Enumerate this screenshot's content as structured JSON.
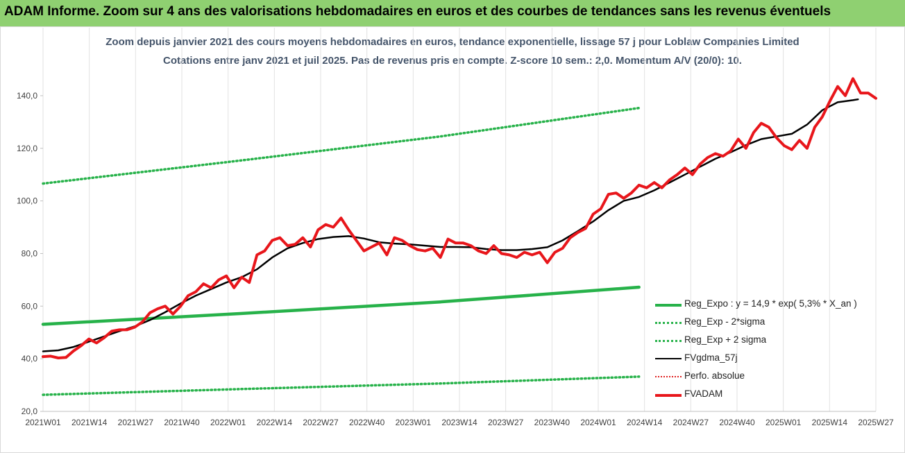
{
  "header": {
    "banner": "ADAM Informe. Zoom sur 4 ans des valorisations hebdomadaires en euros et des courbes de tendances sans les revenus éventuels"
  },
  "chart_data": {
    "type": "line",
    "title": "Zoom depuis janvier 2021 des cours moyens hebdomadaires en euros, tendance exponentielle, lissage 57 j pour Loblaw Companies Limited",
    "subtitle": "Cotations entre janv 2021 et juil 2025. Pas de revenus pris en compte. Z-score 10 sem.: 2,0. Momentum A/V (20/0): 10.",
    "xlabel": "",
    "ylabel": "",
    "ylim": [
      20,
      150
    ],
    "yticks": [
      "20,0",
      "40,0",
      "60,0",
      "80,0",
      "100,0",
      "120,0",
      "140,0"
    ],
    "ytick_values": [
      20,
      40,
      60,
      80,
      100,
      120,
      140
    ],
    "xticks": [
      "2021W01",
      "2021W14",
      "2021W27",
      "2021W40",
      "2022W01",
      "2022W14",
      "2022W27",
      "2022W40",
      "2023W01",
      "2023W14",
      "2023W27",
      "2023W40",
      "2024W01",
      "2024W14",
      "2024W27",
      "2024W40",
      "2025W01",
      "2025W14",
      "2025W27"
    ],
    "x_week_range": [
      0,
      234
    ],
    "grid": "vertical",
    "legend_position": "bottom-right",
    "colors": {
      "reg_expo": "#27b24a",
      "sigma_bands": "#27b24a",
      "smoothed": "#000000",
      "perfo": "#e02020",
      "fvadam": "#e8161b"
    },
    "series": [
      {
        "name": "Reg_Expo : y = 14,9 * exp( 5,3% *  X_an )",
        "style": "solid-thick",
        "points": [
          [
            0,
            53.1
          ],
          [
            78,
            57.2
          ],
          [
            156,
            61.6
          ],
          [
            234,
            67.2
          ]
        ]
      },
      {
        "name": "Reg_Exp - 2*sigma",
        "style": "dotted",
        "points": [
          [
            0,
            26.3
          ],
          [
            78,
            28.5
          ],
          [
            156,
            30.6
          ],
          [
            234,
            33.2
          ]
        ]
      },
      {
        "name": "Reg_Exp + 2 sigma",
        "style": "dotted",
        "points": [
          [
            0,
            106.6
          ],
          [
            78,
            115.4
          ],
          [
            156,
            124.5
          ],
          [
            234,
            135.3
          ]
        ]
      },
      {
        "name": "FVgdma_57j",
        "style": "solid",
        "points": [
          [
            0,
            42.8
          ],
          [
            6,
            43.2
          ],
          [
            12,
            44.5
          ],
          [
            18,
            46.5
          ],
          [
            24,
            48.5
          ],
          [
            30,
            50.5
          ],
          [
            36,
            52.3
          ],
          [
            42,
            54.7
          ],
          [
            48,
            57.7
          ],
          [
            54,
            61
          ],
          [
            60,
            64
          ],
          [
            66,
            66.5
          ],
          [
            72,
            69
          ],
          [
            78,
            71
          ],
          [
            84,
            74
          ],
          [
            90,
            78.5
          ],
          [
            96,
            82
          ],
          [
            102,
            84
          ],
          [
            108,
            85.5
          ],
          [
            114,
            86.3
          ],
          [
            120,
            86.6
          ],
          [
            126,
            85.7
          ],
          [
            132,
            84.3
          ],
          [
            138,
            83.8
          ],
          [
            144,
            83.5
          ],
          [
            150,
            83
          ],
          [
            156,
            82.5
          ],
          [
            162,
            82.5
          ],
          [
            168,
            82.4
          ],
          [
            174,
            81.7
          ],
          [
            180,
            81.3
          ],
          [
            186,
            81.3
          ],
          [
            192,
            81.7
          ],
          [
            198,
            82.4
          ],
          [
            204,
            85
          ],
          [
            210,
            88.5
          ],
          [
            216,
            92.2
          ],
          [
            222,
            96.5
          ],
          [
            228,
            100
          ],
          [
            234,
            101.5
          ],
          [
            240,
            104
          ],
          [
            246,
            107
          ],
          [
            252,
            110
          ],
          [
            258,
            113
          ],
          [
            264,
            116
          ],
          [
            270,
            118.5
          ],
          [
            276,
            121.2
          ],
          [
            282,
            123.5
          ],
          [
            288,
            124.5
          ],
          [
            294,
            125.5
          ],
          [
            300,
            129
          ],
          [
            306,
            134.5
          ],
          [
            312,
            137.5
          ],
          [
            318,
            138.3
          ],
          [
            320,
            138.6
          ]
        ]
      },
      {
        "name": "Perfo. absolue",
        "style": "dotted-red",
        "points": []
      },
      {
        "name": "FVADAM",
        "style": "solid-thick",
        "points": [
          [
            0,
            40.8
          ],
          [
            3,
            41
          ],
          [
            6,
            40.3
          ],
          [
            9,
            40.5
          ],
          [
            12,
            43
          ],
          [
            15,
            45
          ],
          [
            18,
            47.5
          ],
          [
            21,
            46
          ],
          [
            24,
            48
          ],
          [
            27,
            50.5
          ],
          [
            30,
            51
          ],
          [
            33,
            51
          ],
          [
            36,
            52
          ],
          [
            39,
            54
          ],
          [
            42,
            57.5
          ],
          [
            45,
            59
          ],
          [
            48,
            60
          ],
          [
            51,
            57
          ],
          [
            54,
            60
          ],
          [
            57,
            64
          ],
          [
            60,
            65.5
          ],
          [
            63,
            68.5
          ],
          [
            66,
            67
          ],
          [
            69,
            70
          ],
          [
            72,
            71.5
          ],
          [
            75,
            67
          ],
          [
            78,
            71
          ],
          [
            81,
            69
          ],
          [
            84,
            79.5
          ],
          [
            87,
            81
          ],
          [
            90,
            85
          ],
          [
            93,
            86
          ],
          [
            96,
            83
          ],
          [
            99,
            83.5
          ],
          [
            102,
            86
          ],
          [
            105,
            82.5
          ],
          [
            108,
            89
          ],
          [
            111,
            91
          ],
          [
            114,
            90
          ],
          [
            117,
            93.5
          ],
          [
            120,
            89
          ],
          [
            123,
            85
          ],
          [
            126,
            81
          ],
          [
            129,
            82.5
          ],
          [
            132,
            84
          ],
          [
            135,
            79.5
          ],
          [
            138,
            86
          ],
          [
            141,
            85
          ],
          [
            144,
            83
          ],
          [
            147,
            81.5
          ],
          [
            150,
            81
          ],
          [
            153,
            82
          ],
          [
            156,
            78.5
          ],
          [
            159,
            85.5
          ],
          [
            162,
            84
          ],
          [
            165,
            84
          ],
          [
            168,
            83
          ],
          [
            171,
            81
          ],
          [
            174,
            80
          ],
          [
            177,
            83
          ],
          [
            180,
            80
          ],
          [
            183,
            79.5
          ],
          [
            186,
            78.5
          ],
          [
            189,
            80.5
          ],
          [
            192,
            79.5
          ],
          [
            195,
            80.5
          ],
          [
            198,
            76.5
          ],
          [
            201,
            80.5
          ],
          [
            204,
            82
          ],
          [
            207,
            86
          ],
          [
            210,
            88
          ],
          [
            213,
            89.5
          ],
          [
            216,
            95
          ],
          [
            219,
            97
          ],
          [
            222,
            102.5
          ],
          [
            225,
            103
          ],
          [
            228,
            101
          ],
          [
            231,
            103
          ],
          [
            234,
            106
          ],
          [
            237,
            105
          ],
          [
            240,
            107
          ],
          [
            243,
            105
          ],
          [
            246,
            108
          ],
          [
            249,
            110
          ],
          [
            252,
            112.5
          ],
          [
            255,
            110
          ],
          [
            258,
            114
          ],
          [
            261,
            116.5
          ],
          [
            264,
            118
          ],
          [
            267,
            117
          ],
          [
            270,
            119
          ],
          [
            273,
            123.5
          ],
          [
            276,
            120
          ],
          [
            279,
            126
          ],
          [
            282,
            129.5
          ],
          [
            285,
            128
          ],
          [
            288,
            124
          ],
          [
            291,
            121
          ],
          [
            294,
            119.5
          ],
          [
            297,
            123
          ],
          [
            300,
            120
          ],
          [
            303,
            128
          ],
          [
            306,
            132
          ],
          [
            309,
            138
          ],
          [
            312,
            143.5
          ],
          [
            315,
            140
          ],
          [
            318,
            146.5
          ],
          [
            321,
            141
          ],
          [
            324,
            141
          ],
          [
            327,
            139
          ]
        ]
      }
    ]
  }
}
